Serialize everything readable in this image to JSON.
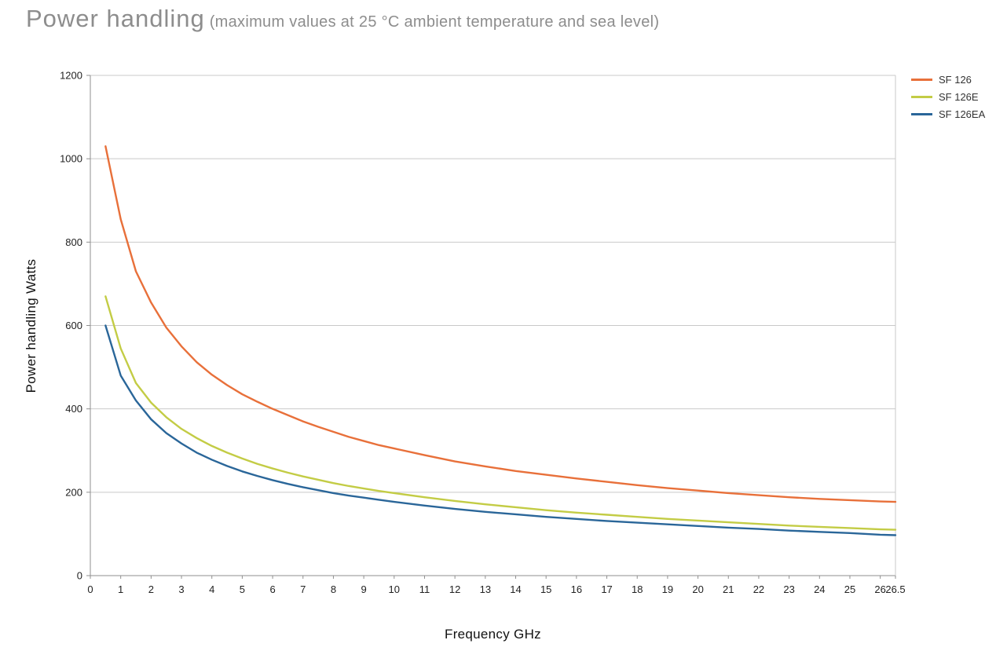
{
  "title": {
    "main": "Power handling",
    "sub": "(maximum values at 25 °C ambient temperature and sea level)"
  },
  "colors": {
    "grid": "#c9c9c9",
    "axis": "#8f8f8f",
    "tick_text": "#222222",
    "title_text": "#8d8d8d"
  },
  "chart_data": {
    "type": "line",
    "title": "Power handling (maximum values at 25 °C ambient temperature and sea level)",
    "xlabel": "Frequency GHz",
    "ylabel": "Power handling Watts",
    "xlim": [
      0,
      26.5
    ],
    "ylim": [
      0,
      1200
    ],
    "xticks": [
      "0",
      "1",
      "2",
      "3",
      "4",
      "5",
      "6",
      "7",
      "8",
      "9",
      "10",
      "11",
      "12",
      "13",
      "14",
      "15",
      "16",
      "17",
      "18",
      "19",
      "20",
      "21",
      "22",
      "23",
      "24",
      "25",
      "26",
      "26.5"
    ],
    "yticks": [
      0,
      200,
      400,
      600,
      800,
      1000,
      1200
    ],
    "grid": "horizontal",
    "legend_position": "top-right",
    "x": [
      0.5,
      1,
      1.5,
      2,
      2.5,
      3,
      3.5,
      4,
      4.5,
      5,
      5.5,
      6,
      6.5,
      7,
      7.5,
      8,
      8.5,
      9,
      9.5,
      10,
      11,
      12,
      13,
      14,
      15,
      16,
      17,
      18,
      19,
      20,
      21,
      22,
      23,
      24,
      25,
      26,
      26.5
    ],
    "series": [
      {
        "name": "SF 126",
        "color": "#E8703A",
        "values": [
          1030,
          855,
          730,
          655,
          595,
          550,
          512,
          482,
          457,
          435,
          417,
          400,
          385,
          370,
          357,
          345,
          333,
          323,
          313,
          305,
          289,
          274,
          262,
          251,
          242,
          233,
          225,
          217,
          210,
          204,
          198,
          193,
          188,
          184,
          181,
          178,
          177
        ]
      },
      {
        "name": "SF 126E",
        "color": "#C3CC45",
        "values": [
          670,
          545,
          462,
          415,
          380,
          352,
          330,
          311,
          295,
          281,
          268,
          257,
          247,
          238,
          230,
          222,
          215,
          209,
          203,
          198,
          188,
          179,
          171,
          164,
          157,
          151,
          146,
          141,
          136,
          132,
          128,
          124,
          120,
          117,
          114,
          111,
          110
        ]
      },
      {
        "name": "SF 126EA",
        "color": "#2A6699",
        "values": [
          600,
          480,
          420,
          375,
          342,
          317,
          295,
          278,
          263,
          250,
          239,
          229,
          220,
          212,
          205,
          198,
          192,
          187,
          182,
          177,
          168,
          160,
          153,
          147,
          141,
          136,
          131,
          127,
          123,
          119,
          115,
          112,
          108,
          105,
          102,
          98,
          97
        ]
      }
    ]
  }
}
